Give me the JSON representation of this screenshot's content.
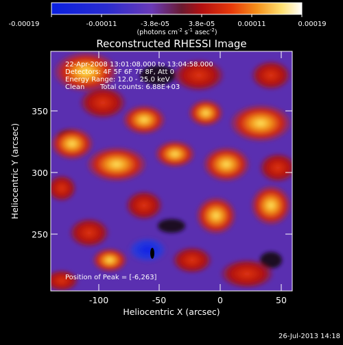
{
  "colorbar": {
    "tick_labels": [
      "-0.00019",
      "-0.00011",
      "-3.8e-05",
      "3.8e-05",
      "0.00011",
      "0.00019"
    ],
    "units_prefix": "(photons cm",
    "units_exp1": "-2",
    "units_mid": " s",
    "units_exp2": "-1",
    "units_mid2": " asec",
    "units_exp3": "-2",
    "units_suffix": ")"
  },
  "title": "Reconstructed RHESSI Image",
  "annotations": {
    "time": "22-Apr-2008 13:01:08.000 to 13:04:58.000",
    "detectors": "Detectors: 4F 5F 6F 7F 8F, Att 0",
    "energy": "Energy Range: 12.0 - 25.0 keV",
    "method": "Clean",
    "counts": "Total counts: 6.88E+03",
    "peak": "Position of Peak = [-6,263]"
  },
  "axes": {
    "xlabel": "Heliocentric X (arcsec)",
    "ylabel": "Heliocentric Y (arcsec)",
    "x_ticks": [
      "-100",
      "-50",
      "0",
      "50"
    ],
    "y_ticks": [
      "250",
      "300",
      "350"
    ]
  },
  "footer_date": "26-Jul-2013 14:18",
  "colors": {
    "background": "#000000",
    "purple": "#5a2fb0",
    "red": "#c81e0c",
    "orange": "#f08a1a",
    "yellow": "#ffe060",
    "blue": "#1a2ad8"
  }
}
